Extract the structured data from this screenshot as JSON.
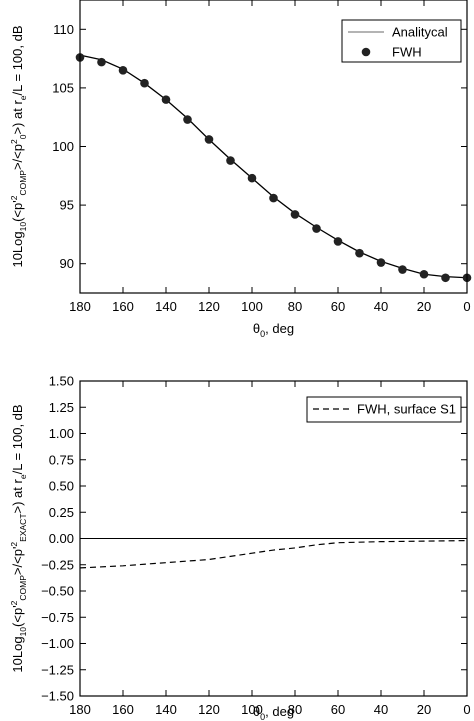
{
  "chart_data": [
    {
      "type": "line",
      "xlabel_main": "θ",
      "xlabel_sub": "0",
      "xlabel_rest": ", deg",
      "ylabel_parts": [
        {
          "t": "10Log",
          "s": "n"
        },
        {
          "t": "10",
          "s": "sub"
        },
        {
          "t": "(<p'",
          "s": "n"
        },
        {
          "t": "2",
          "s": "sup"
        },
        {
          "t": "COMP",
          "s": "sub"
        },
        {
          "t": ">/<p",
          "s": "n"
        },
        {
          "t": "2",
          "s": "sup"
        },
        {
          "t": "0",
          "s": "sub"
        },
        {
          "t": ">) at r",
          "s": "n"
        },
        {
          "t": "e",
          "s": "sub"
        },
        {
          "t": "/L = 100, dB",
          "s": "n"
        }
      ],
      "xlim": [
        180,
        0
      ],
      "ylim": [
        87.5,
        112.5
      ],
      "xticks": [
        "180",
        "160",
        "140",
        "120",
        "100",
        "80",
        "60",
        "40",
        "20",
        "0"
      ],
      "xtick_values": [
        180,
        160,
        140,
        120,
        100,
        80,
        60,
        40,
        20,
        0
      ],
      "yticks": [
        "90",
        "95",
        "100",
        "105",
        "110"
      ],
      "ytick_values": [
        90,
        95,
        100,
        105,
        110
      ],
      "legend_placement": "top-right",
      "series": [
        {
          "name": "Analitycal",
          "style": "solid-line",
          "x": [
            180,
            170,
            160,
            150,
            140,
            130,
            120,
            110,
            100,
            90,
            80,
            70,
            60,
            50,
            40,
            30,
            20,
            10,
            0
          ],
          "y": [
            107.8,
            107.4,
            106.6,
            105.4,
            104.0,
            102.4,
            100.6,
            98.9,
            97.3,
            95.7,
            94.3,
            93.1,
            92.0,
            91.0,
            90.2,
            89.6,
            89.1,
            88.9,
            88.8
          ]
        },
        {
          "name": "FWH",
          "style": "filled-circle",
          "x": [
            180,
            170,
            160,
            150,
            140,
            130,
            120,
            110,
            100,
            90,
            80,
            70,
            60,
            50,
            40,
            30,
            20,
            10,
            0
          ],
          "y": [
            107.6,
            107.2,
            106.5,
            105.4,
            104.0,
            102.3,
            100.6,
            98.8,
            97.3,
            95.6,
            94.2,
            93.0,
            91.9,
            90.9,
            90.1,
            89.5,
            89.1,
            88.8,
            88.8
          ]
        }
      ]
    },
    {
      "type": "line",
      "xlabel_main": "θ",
      "xlabel_sub": "0",
      "xlabel_rest": ", deg",
      "ylabel_parts": [
        {
          "t": "10Log",
          "s": "n"
        },
        {
          "t": "10",
          "s": "sub"
        },
        {
          "t": "(<p'",
          "s": "n"
        },
        {
          "t": "2",
          "s": "sup"
        },
        {
          "t": "COMP",
          "s": "sub"
        },
        {
          "t": ">/<p'",
          "s": "n"
        },
        {
          "t": "2",
          "s": "sup"
        },
        {
          "t": "EXACT",
          "s": "sub"
        },
        {
          "t": ">) at r",
          "s": "n"
        },
        {
          "t": "e",
          "s": "sub"
        },
        {
          "t": "/L = 100, dB",
          "s": "n"
        }
      ],
      "xlim": [
        180,
        0
      ],
      "ylim": [
        -1.5,
        1.5
      ],
      "xticks": [
        "180",
        "160",
        "140",
        "120",
        "100",
        "80",
        "60",
        "40",
        "20",
        "0"
      ],
      "xtick_values": [
        180,
        160,
        140,
        120,
        100,
        80,
        60,
        40,
        20,
        0
      ],
      "yticks": [
        "−1.50",
        "−1.25",
        "−1.00",
        "−0.75",
        "−0.50",
        "−0.25",
        "0.00",
        "0.25",
        "0.50",
        "0.75",
        "1.00",
        "1.25",
        "1.50"
      ],
      "ytick_values": [
        -1.5,
        -1.25,
        -1.0,
        -0.75,
        -0.5,
        -0.25,
        0.0,
        0.25,
        0.5,
        0.75,
        1.0,
        1.25,
        1.5
      ],
      "reference_line_y": 0,
      "legend_placement": "top-right",
      "series": [
        {
          "name": "FWH, surface S1",
          "style": "dashed-line",
          "x": [
            180,
            160,
            140,
            120,
            110,
            100,
            90,
            80,
            70,
            60,
            50,
            40,
            20,
            0
          ],
          "y": [
            -0.28,
            -0.26,
            -0.23,
            -0.2,
            -0.17,
            -0.14,
            -0.11,
            -0.09,
            -0.06,
            -0.04,
            -0.035,
            -0.03,
            -0.025,
            -0.02
          ]
        }
      ]
    }
  ]
}
